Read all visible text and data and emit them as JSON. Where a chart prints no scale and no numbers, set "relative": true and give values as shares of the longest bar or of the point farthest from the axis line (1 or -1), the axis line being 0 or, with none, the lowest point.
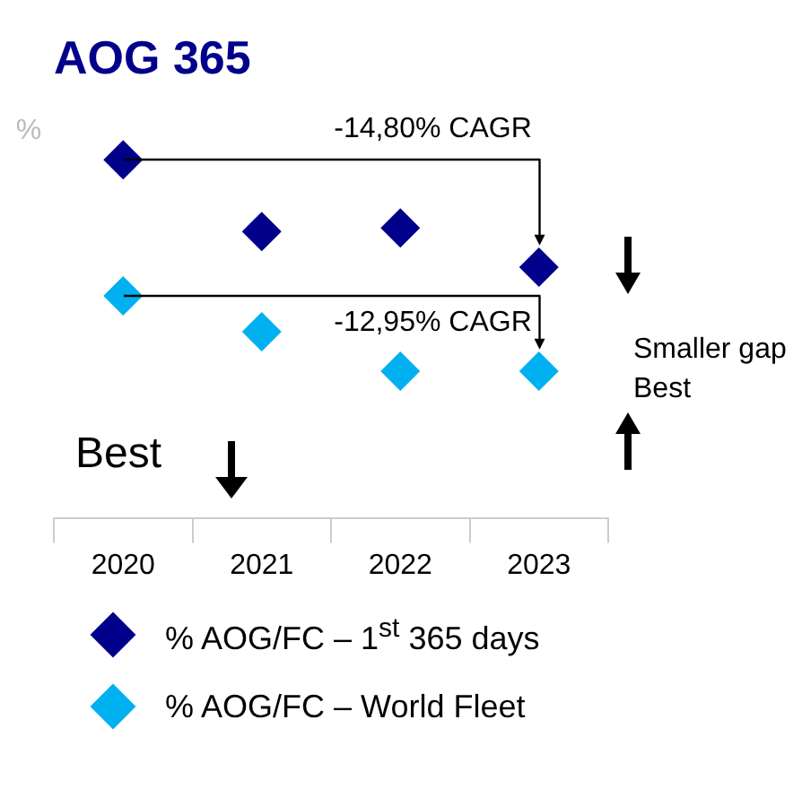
{
  "chart_data": {
    "type": "scatter",
    "title": "AOG 365",
    "ylabel": "%",
    "categories": [
      "2020",
      "2021",
      "2022",
      "2023"
    ],
    "relative": true,
    "marker": "diamond",
    "legend": "bottom",
    "grid": false,
    "series": [
      {
        "name": "% AOG/FC – 1$^{st}$ 365 days",
        "color": "#00008b",
        "values": [
          1,
          0.8,
          0.81,
          0.7
        ]
      },
      {
        "name": "% AOG/FC – World Fleet",
        "color": "#00b0f0",
        "values": [
          0.62,
          0.52,
          0.41,
          0.41
        ]
      }
    ],
    "annotations": [
      "-14,80% CAGR",
      "-12,95% CAGR",
      "Smaller gap",
      "Best",
      "Best"
    ]
  }
}
